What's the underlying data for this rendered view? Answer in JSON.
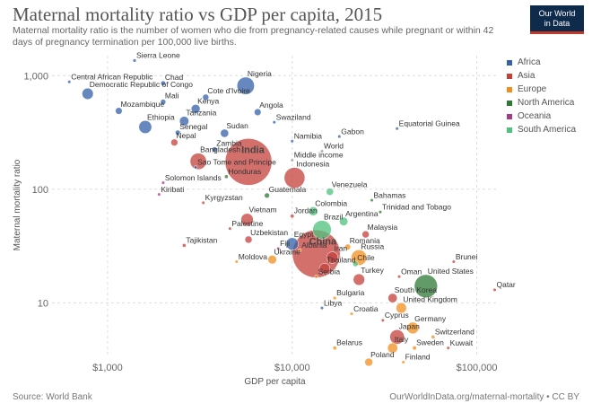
{
  "header": {
    "title": "Maternal mortality ratio vs GDP per capita, 2015",
    "subtitle": "Maternal mortality ratio is the number of women who die from pregnancy-related causes while pregnant or within 42 days of pregnancy termination per 100,000 live births.",
    "logo_line1": "Our World",
    "logo_line2": "in Data"
  },
  "footer": {
    "source": "Source: World Bank",
    "url": "OurWorldInData.org/maternal-mortality • CC BY"
  },
  "colors": {
    "Africa": "#3360a9",
    "Asia": "#c4403b",
    "Europe": "#f28e1c",
    "North America": "#2d7a35",
    "Oceania": "#a43b87",
    "South America": "#4fc17e"
  },
  "chart_data": {
    "type": "scatter",
    "x_scale": "log",
    "y_scale": "log",
    "xlabel": "GDP per capita",
    "ylabel": "Maternal mortality ratio",
    "xlim": [
      500,
      130000
    ],
    "ylim": [
      3.5,
      1500
    ],
    "x_ticks": [
      1000,
      10000,
      100000
    ],
    "x_tick_labels": [
      "$1,000",
      "$10,000",
      "$100,000"
    ],
    "y_ticks": [
      10,
      100,
      1000
    ],
    "y_tick_labels": [
      "10",
      "100",
      "1,000"
    ],
    "grid": true,
    "legend_position": "top-right",
    "legend": [
      "Africa",
      "Asia",
      "Europe",
      "North America",
      "Oceania",
      "South America"
    ],
    "points": [
      {
        "label": "Sierra Leone",
        "region": "Africa",
        "x": 1400,
        "y": 1360,
        "pop": 7
      },
      {
        "label": "Central African Republic",
        "region": "Africa",
        "x": 620,
        "y": 882,
        "pop": 5
      },
      {
        "label": "Chad",
        "region": "Africa",
        "x": 2000,
        "y": 856,
        "pop": 14
      },
      {
        "label": "Democratic Republic of Congo",
        "region": "Africa",
        "x": 780,
        "y": 693,
        "pop": 77
      },
      {
        "label": "Nigeria",
        "region": "Africa",
        "x": 5600,
        "y": 814,
        "pop": 181
      },
      {
        "label": "Mali",
        "region": "Africa",
        "x": 2000,
        "y": 587,
        "pop": 17
      },
      {
        "label": "Cote d'Ivoire",
        "region": "Africa",
        "x": 3400,
        "y": 645,
        "pop": 23
      },
      {
        "label": "Mozambique",
        "region": "Africa",
        "x": 1150,
        "y": 489,
        "pop": 28
      },
      {
        "label": "Kenya",
        "region": "Africa",
        "x": 3000,
        "y": 510,
        "pop": 47
      },
      {
        "label": "Angola",
        "region": "Africa",
        "x": 6500,
        "y": 477,
        "pop": 28
      },
      {
        "label": "Tanzania",
        "region": "Africa",
        "x": 2600,
        "y": 398,
        "pop": 53
      },
      {
        "label": "Swaziland",
        "region": "Africa",
        "x": 8000,
        "y": 389,
        "pop": 1
      },
      {
        "label": "Ethiopia",
        "region": "Africa",
        "x": 1600,
        "y": 353,
        "pop": 100
      },
      {
        "label": "Senegal",
        "region": "Africa",
        "x": 2400,
        "y": 315,
        "pop": 15
      },
      {
        "label": "Sudan",
        "region": "Africa",
        "x": 4300,
        "y": 311,
        "pop": 40
      },
      {
        "label": "Gabon",
        "region": "Africa",
        "x": 18000,
        "y": 291,
        "pop": 2
      },
      {
        "label": "Equatorial Guinea",
        "region": "Africa",
        "x": 37000,
        "y": 342,
        "pop": 1
      },
      {
        "label": "Namibia",
        "region": "Africa",
        "x": 10000,
        "y": 265,
        "pop": 2
      },
      {
        "label": "Zambia",
        "region": "Africa",
        "x": 3800,
        "y": 224,
        "pop": 16
      },
      {
        "label": "Sao Tome and Principe",
        "region": "Africa",
        "x": 3000,
        "y": 156,
        "pop": 0.2
      },
      {
        "label": "Solomon Islands",
        "region": "Oceania",
        "x": 2000,
        "y": 114,
        "pop": 0.6
      },
      {
        "label": "Nepal",
        "region": "Asia",
        "x": 2300,
        "y": 258,
        "pop": 29
      },
      {
        "label": "Bangladesh",
        "region": "Asia",
        "x": 3100,
        "y": 176,
        "pop": 161
      },
      {
        "label": "India",
        "region": "Asia",
        "x": 5800,
        "y": 174,
        "pop": 1311
      },
      {
        "label": "Honduras",
        "region": "North America",
        "x": 4400,
        "y": 129,
        "pop": 8
      },
      {
        "label": "World",
        "region": "World",
        "x": 14500,
        "y": 216,
        "pop": 0
      },
      {
        "label": "Middle income",
        "region": "World",
        "x": 10000,
        "y": 180,
        "pop": 0
      },
      {
        "label": "Indonesia",
        "region": "Asia",
        "x": 10300,
        "y": 126,
        "pop": 258
      },
      {
        "label": "Venezuela",
        "region": "South America",
        "x": 16000,
        "y": 95,
        "pop": 31
      },
      {
        "label": "Kiribati",
        "region": "Oceania",
        "x": 1900,
        "y": 90,
        "pop": 0.1
      },
      {
        "label": "Guatemala",
        "region": "North America",
        "x": 7300,
        "y": 88,
        "pop": 16
      },
      {
        "label": "Kyrgyzstan",
        "region": "Asia",
        "x": 3300,
        "y": 76,
        "pop": 6
      },
      {
        "label": "Bahamas",
        "region": "North America",
        "x": 27000,
        "y": 80,
        "pop": 0.4
      },
      {
        "label": "Colombia",
        "region": "South America",
        "x": 13000,
        "y": 64,
        "pop": 48
      },
      {
        "label": "Trinidad and Tobago",
        "region": "North America",
        "x": 30000,
        "y": 63,
        "pop": 1
      },
      {
        "label": "Vietnam",
        "region": "Asia",
        "x": 5700,
        "y": 54,
        "pop": 92
      },
      {
        "label": "Jordan",
        "region": "Asia",
        "x": 10000,
        "y": 58,
        "pop": 9
      },
      {
        "label": "Argentina",
        "region": "South America",
        "x": 19000,
        "y": 52,
        "pop": 43
      },
      {
        "label": "Brazil",
        "region": "South America",
        "x": 14500,
        "y": 44,
        "pop": 206
      },
      {
        "label": "Palestine",
        "region": "Asia",
        "x": 4600,
        "y": 45,
        "pop": 4
      },
      {
        "label": "Malaysia",
        "region": "Asia",
        "x": 25000,
        "y": 40,
        "pop": 30
      },
      {
        "label": "Tajikistan",
        "region": "Asia",
        "x": 2600,
        "y": 32,
        "pop": 8
      },
      {
        "label": "Uzbekistan",
        "region": "Asia",
        "x": 5800,
        "y": 36,
        "pop": 31
      },
      {
        "label": "Egypt",
        "region": "Africa",
        "x": 10000,
        "y": 33,
        "pop": 92
      },
      {
        "label": "Fiji",
        "region": "Oceania",
        "x": 8400,
        "y": 30,
        "pop": 1
      },
      {
        "label": "China",
        "region": "Asia",
        "x": 13500,
        "y": 27,
        "pop": 1371
      },
      {
        "label": "Albania",
        "region": "Europe",
        "x": 11000,
        "y": 29,
        "pop": 3
      },
      {
        "label": "Romania",
        "region": "Europe",
        "x": 20000,
        "y": 31,
        "pop": 20
      },
      {
        "label": "Iran",
        "region": "Asia",
        "x": 16500,
        "y": 25,
        "pop": 79
      },
      {
        "label": "Moldova",
        "region": "Europe",
        "x": 5000,
        "y": 23,
        "pop": 4
      },
      {
        "label": "Ukraine",
        "region": "Europe",
        "x": 7800,
        "y": 24,
        "pop": 45
      },
      {
        "label": "Russia",
        "region": "Europe",
        "x": 23000,
        "y": 25,
        "pop": 144
      },
      {
        "label": "Thailand",
        "region": "Asia",
        "x": 15000,
        "y": 20,
        "pop": 68
      },
      {
        "label": "Chile",
        "region": "South America",
        "x": 22000,
        "y": 22,
        "pop": 18
      },
      {
        "label": "Brunei",
        "region": "Asia",
        "x": 75000,
        "y": 23,
        "pop": 0.4
      },
      {
        "label": "Serbia",
        "region": "Europe",
        "x": 13500,
        "y": 17,
        "pop": 7
      },
      {
        "label": "Turkey",
        "region": "Asia",
        "x": 23000,
        "y": 16,
        "pop": 79
      },
      {
        "label": "Oman",
        "region": "Asia",
        "x": 38000,
        "y": 17,
        "pop": 4
      },
      {
        "label": "United States",
        "region": "North America",
        "x": 53000,
        "y": 14,
        "pop": 321
      },
      {
        "label": "Qatar",
        "region": "Asia",
        "x": 125000,
        "y": 13,
        "pop": 2
      },
      {
        "label": "Bulgaria",
        "region": "Europe",
        "x": 17000,
        "y": 11,
        "pop": 7
      },
      {
        "label": "South Korea",
        "region": "Asia",
        "x": 35000,
        "y": 11,
        "pop": 51
      },
      {
        "label": "Libya",
        "region": "Africa",
        "x": 14500,
        "y": 9,
        "pop": 6
      },
      {
        "label": "United Kingdom",
        "region": "Europe",
        "x": 39000,
        "y": 9,
        "pop": 65
      },
      {
        "label": "Croatia",
        "region": "Europe",
        "x": 21000,
        "y": 8,
        "pop": 4
      },
      {
        "label": "Cyprus",
        "region": "Asia",
        "x": 31000,
        "y": 7,
        "pop": 1
      },
      {
        "label": "Germany",
        "region": "Europe",
        "x": 45000,
        "y": 6,
        "pop": 82
      },
      {
        "label": "Japan",
        "region": "Asia",
        "x": 37000,
        "y": 5,
        "pop": 127
      },
      {
        "label": "Switzerland",
        "region": "Europe",
        "x": 58000,
        "y": 5,
        "pop": 8
      },
      {
        "label": "Italy",
        "region": "Europe",
        "x": 35000,
        "y": 4,
        "pop": 61
      },
      {
        "label": "Sweden",
        "region": "Europe",
        "x": 46000,
        "y": 4,
        "pop": 10
      },
      {
        "label": "Kuwait",
        "region": "Asia",
        "x": 70000,
        "y": 4,
        "pop": 4
      },
      {
        "label": "Belarus",
        "region": "Europe",
        "x": 17000,
        "y": 4,
        "pop": 9
      },
      {
        "label": "Poland",
        "region": "Europe",
        "x": 26000,
        "y": 3,
        "pop": 38
      },
      {
        "label": "Finland",
        "region": "Europe",
        "x": 40000,
        "y": 3,
        "pop": 5
      }
    ]
  }
}
